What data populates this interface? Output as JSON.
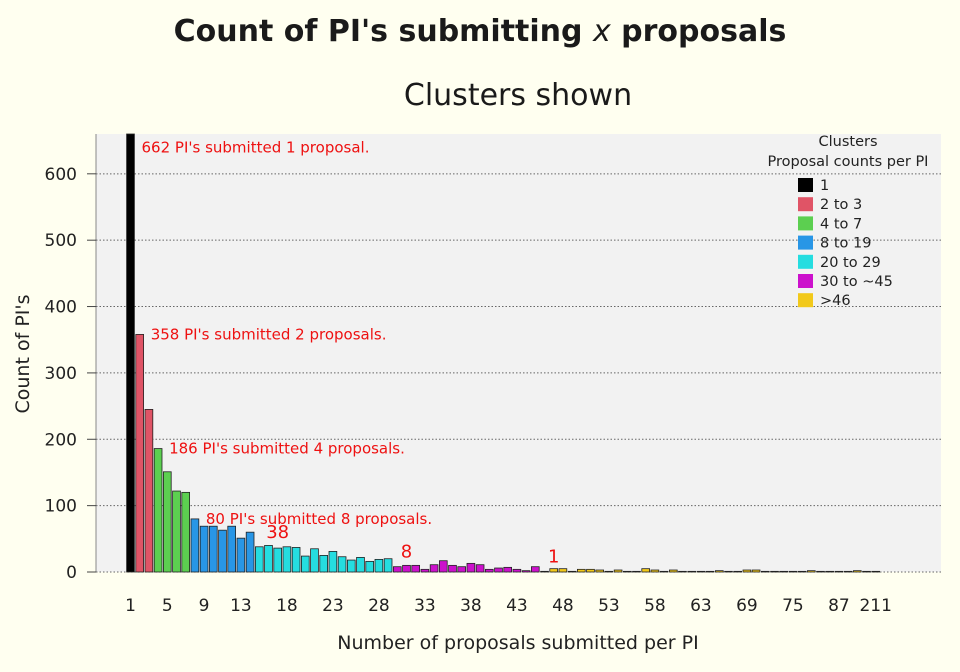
{
  "chart_data": {
    "type": "bar",
    "title": "Count of PI's submitting x proposals",
    "title_parts": [
      "Count of PI's submitting ",
      "x",
      " proposals"
    ],
    "subtitle": "Clusters shown",
    "xlabel": "Number of proposals submitted per PI",
    "ylabel": "Count of PI's",
    "ylim": [
      0,
      660
    ],
    "yticks": [
      0,
      100,
      200,
      300,
      400,
      500,
      600
    ],
    "grid": true,
    "legend_position": "top-right",
    "legend": {
      "title_line1": "Clusters",
      "title_line2": "Proposal counts per PI",
      "entries": [
        {
          "label": "1",
          "color": "#000000"
        },
        {
          "label": "2 to 3",
          "color": "#e05466"
        },
        {
          "label": "4 to 7",
          "color": "#5ccf50"
        },
        {
          "label": "8 to 19",
          "color": "#2896e6"
        },
        {
          "label": "20 to 29",
          "color": "#25dde0"
        },
        {
          "label": "30 to ~45",
          "color": "#cc11cc"
        },
        {
          "label": ">46",
          "color": "#f2c91a"
        }
      ]
    },
    "xtick_labels": [
      "1",
      "5",
      "9",
      "13",
      "18",
      "23",
      "28",
      "33",
      "38",
      "43",
      "48",
      "53",
      "58",
      "63",
      "69",
      "75",
      "87",
      "211"
    ],
    "xtick_categories": [
      "1",
      "5",
      "9",
      "13",
      "18",
      "23",
      "28",
      "33",
      "38",
      "43",
      "48",
      "53",
      "58",
      "63",
      "69",
      "75",
      "87",
      "211"
    ],
    "categories": [
      "1",
      "2",
      "3",
      "4",
      "5",
      "6",
      "7",
      "8",
      "9",
      "10",
      "11",
      "12",
      "13",
      "14",
      "15",
      "16",
      "17",
      "18",
      "19",
      "20",
      "21",
      "22",
      "23",
      "24",
      "25",
      "26",
      "27",
      "28",
      "29",
      "30",
      "31",
      "32",
      "33",
      "34",
      "35",
      "36",
      "37",
      "38",
      "39",
      "40",
      "41",
      "42",
      "43",
      "44",
      "45",
      "46",
      "47",
      "48",
      "49",
      "50",
      "51",
      "52",
      "53",
      "54",
      "55",
      "56",
      "57",
      "58",
      "59",
      "60",
      "61",
      "62",
      "63",
      "64",
      "65",
      "66",
      "67",
      "69",
      "70",
      "71",
      "72",
      "74",
      "75",
      "76",
      "79",
      "81",
      "84",
      "87",
      "92",
      "98",
      "120",
      "211"
    ],
    "values": [
      662,
      358,
      245,
      186,
      151,
      122,
      120,
      80,
      69,
      69,
      63,
      69,
      51,
      60,
      38,
      40,
      36,
      38,
      37,
      24,
      35,
      25,
      31,
      23,
      18,
      22,
      16,
      19,
      20,
      8,
      10,
      10,
      4,
      11,
      17,
      10,
      8,
      13,
      11,
      4,
      6,
      7,
      4,
      2,
      8,
      1,
      5,
      5,
      1,
      4,
      4,
      3,
      1,
      3,
      1,
      1,
      5,
      3,
      1,
      3,
      1,
      1,
      1,
      1,
      2,
      1,
      1,
      3,
      3,
      1,
      1,
      1,
      1,
      1,
      2,
      1,
      1,
      1,
      1,
      2,
      1,
      1
    ],
    "cluster_index": [
      0,
      1,
      1,
      2,
      2,
      2,
      2,
      3,
      3,
      3,
      3,
      3,
      3,
      3,
      4,
      4,
      4,
      4,
      4,
      4,
      4,
      4,
      4,
      4,
      4,
      4,
      4,
      4,
      4,
      5,
      5,
      5,
      5,
      5,
      5,
      5,
      5,
      5,
      5,
      5,
      5,
      5,
      5,
      5,
      5,
      6,
      6,
      6,
      6,
      6,
      6,
      6,
      6,
      6,
      6,
      6,
      6,
      6,
      6,
      6,
      6,
      6,
      6,
      6,
      6,
      6,
      6,
      6,
      6,
      6,
      6,
      6,
      6,
      6,
      6,
      6,
      6,
      6,
      6,
      6,
      6,
      6
    ],
    "annotations": [
      {
        "text": "662 PI's submitted 1 proposal.",
        "at_category": "1",
        "y": 640
      },
      {
        "text": "358 PI's submitted 2 proposals.",
        "at_category": "2",
        "y": 358
      },
      {
        "text": "186 PI's submitted 4 proposals.",
        "at_category": "4",
        "y": 186
      },
      {
        "text": "80 PI's submitted 8 proposals.",
        "at_category": "8",
        "y": 80
      }
    ],
    "cluster_labels": [
      {
        "text": "38",
        "at_category": "17",
        "y": 38
      },
      {
        "text": "8",
        "at_category": "31",
        "y": 8
      },
      {
        "text": "1",
        "at_category": "47",
        "y": 1
      }
    ]
  }
}
